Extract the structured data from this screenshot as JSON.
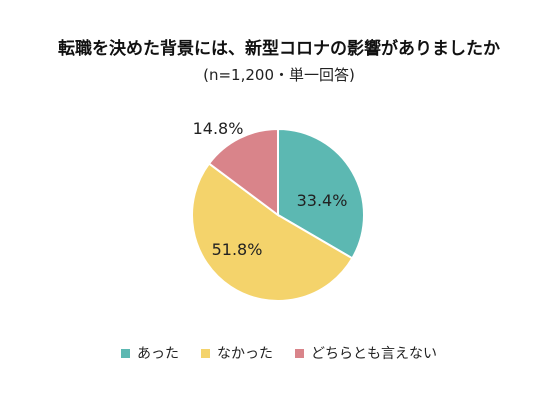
{
  "chart_data": {
    "type": "pie",
    "title": "転職を決めた背景には、新型コロナの影響がありましたか",
    "subtitle": "(n=1,200・単一回答)",
    "start_angle_deg": 0,
    "direction": "clockwise",
    "legend_position": "bottom",
    "slices": [
      {
        "label": "あった",
        "value": 33.4,
        "display": "33.4%",
        "color": "#5cb8b2"
      },
      {
        "label": "なかった",
        "value": 51.8,
        "display": "51.8%",
        "color": "#f4d36b"
      },
      {
        "label": "どちらとも言えない",
        "value": 14.8,
        "display": "14.8%",
        "color": "#d9848a"
      }
    ]
  }
}
